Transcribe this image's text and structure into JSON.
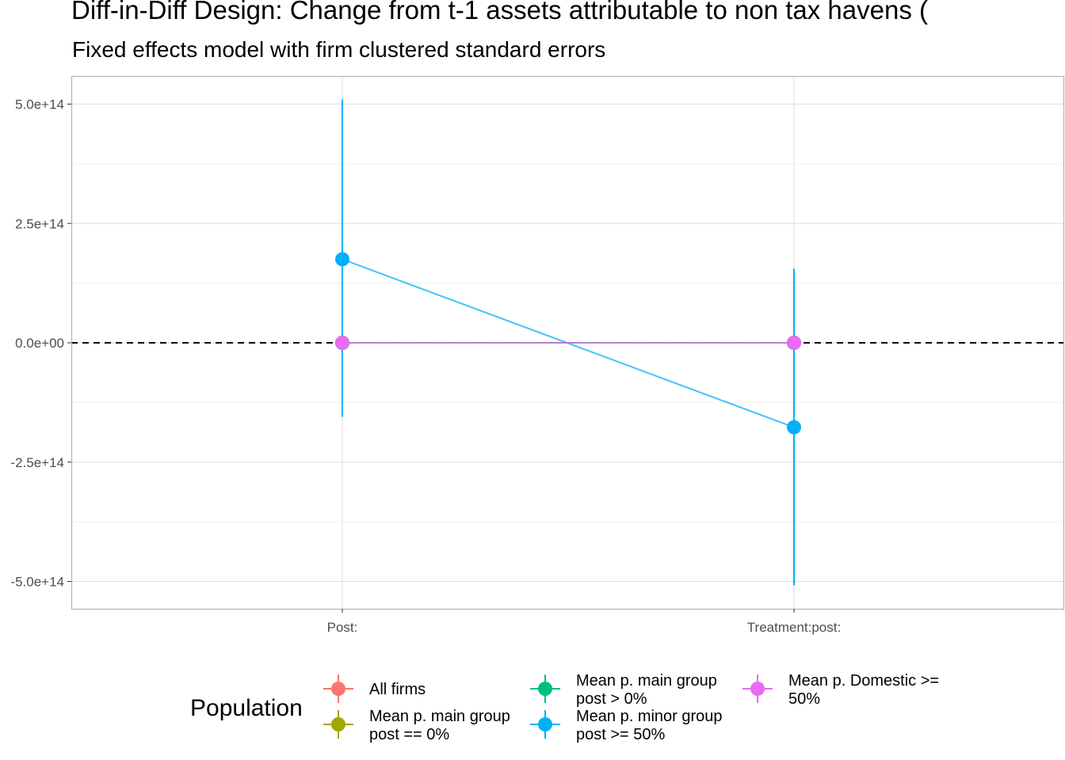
{
  "chart_data": {
    "type": "scatter",
    "title": "Diff-in-Diff Design: Change from t-1 assets attributable to non tax havens (",
    "subtitle": "Fixed effects model with firm clustered standard errors",
    "xlabel": "",
    "ylabel": "",
    "categories": [
      "Post:",
      "Treatment:post:"
    ],
    "yticks": [
      500000000000000.0,
      250000000000000.0,
      0,
      -250000000000000.0,
      -500000000000000.0
    ],
    "ytick_labels": [
      "5.0e+14",
      "2.5e+14",
      "0.0e+00",
      "-2.5e+14",
      "-5.0e+14"
    ],
    "ylim": [
      -560000000000000.0,
      560000000000000.0
    ],
    "reference_line": {
      "y": 0,
      "style": "dashed"
    },
    "grid": true,
    "legend": {
      "title": "Population",
      "position": "bottom",
      "entries": [
        {
          "label_lines": [
            "All firms"
          ],
          "color": "#F8766D"
        },
        {
          "label_lines": [
            "Mean p. main group",
            "post == 0%"
          ],
          "color": "#A3A500"
        },
        {
          "label_lines": [
            "Mean p. main group",
            "post > 0%"
          ],
          "color": "#00BF7D"
        },
        {
          "label_lines": [
            "Mean p. minor group",
            "post >= 50%"
          ],
          "color": "#00B0F6"
        },
        {
          "label_lines": [
            "Mean p. Domestic >=",
            "50%"
          ],
          "color": "#E76BF3"
        }
      ]
    },
    "series": [
      {
        "color": "#F8766D",
        "estimates": [
          0,
          0
        ],
        "ci_low": [
          0,
          0
        ],
        "ci_high": [
          0,
          0
        ]
      },
      {
        "color": "#A3A500",
        "estimates": [
          0,
          0
        ],
        "ci_low": [
          0,
          0
        ],
        "ci_high": [
          0,
          0
        ]
      },
      {
        "color": "#00BF7D",
        "estimates": [
          0,
          0
        ],
        "ci_low": [
          0,
          0
        ],
        "ci_high": [
          0,
          0
        ]
      },
      {
        "color": "#00B0F6",
        "estimates": [
          175000000000000.0,
          -177000000000000.0
        ],
        "ci_low": [
          -155000000000000.0,
          -508000000000000.0
        ],
        "ci_high": [
          510000000000000.0,
          155000000000000.0
        ]
      },
      {
        "color": "#E76BF3",
        "estimates": [
          0,
          0
        ],
        "ci_low": [
          0,
          0
        ],
        "ci_high": [
          0,
          0
        ]
      }
    ]
  }
}
